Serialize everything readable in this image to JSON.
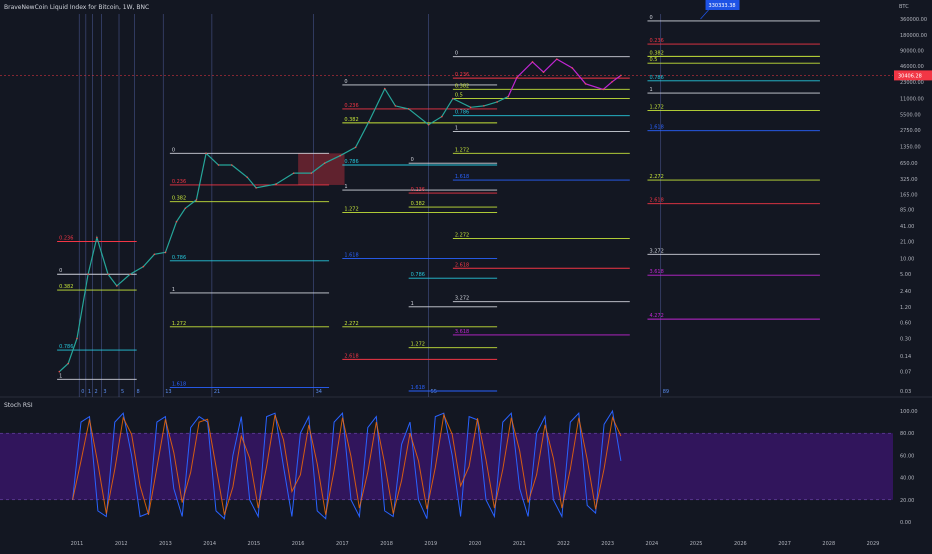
{
  "header": {
    "title": "BraveNewCoin Liquid Index for Bitcoin, 1W, BNC",
    "currency": "BTC",
    "rsi_title": "Stoch RSI"
  },
  "colors": {
    "background": "#131722",
    "price_line": "#26a69a",
    "price_line_recent": "#c026d3",
    "fib_0": "#d1d4dc",
    "fib_0236": "#f23645",
    "fib_0382": "#c6e43a",
    "fib_05": "#c6e43a",
    "fib_0786": "#26c6da",
    "fib_1": "#d1d4dc",
    "fib_1272": "#c6e43a",
    "fib_1618": "#2962ff",
    "fib_2272": "#c6e43a",
    "fib_2618": "#f23645",
    "fib_3272": "#d1d4dc",
    "fib_3618": "#c026d3",
    "fib_4272": "#c026d3",
    "rsi_band": "#4a148c",
    "rsi_k": "#2962ff",
    "rsi_d": "#ff6d00",
    "price_badge": "#f23645",
    "top_badge": "#1e53e5",
    "shaded_box": "#f23645"
  },
  "chart_data": [
    {
      "type": "line",
      "title": "BraveNewCoin Liquid Index for Bitcoin, 1W, BNC",
      "y_scale": "log",
      "y_ticks": [
        "360000.00",
        "180000.00",
        "90000.00",
        "46000.00",
        "23000.00",
        "11000.00",
        "5500.00",
        "2750.00",
        "1350.00",
        "650.00",
        "325.00",
        "165.00",
        "85.00",
        "41.00",
        "21.00",
        "10.00",
        "5.00",
        "2.40",
        "1.20",
        "0.60",
        "0.30",
        "0.14",
        "0.07",
        "0.03"
      ],
      "x_ticks": [
        "2011",
        "2012",
        "2013",
        "2014",
        "2015",
        "2016",
        "2017",
        "2018",
        "2019",
        "2020",
        "2021",
        "2022",
        "2023",
        "2024",
        "2025",
        "2026",
        "2027",
        "2028",
        "2029"
      ],
      "current_price": "30406.28",
      "top_target": "330333.38",
      "series": [
        {
          "x": [
            2010.6,
            2010.8,
            2011.0,
            2011.25,
            2011.45,
            2011.7,
            2011.9,
            2012.2,
            2012.5,
            2012.75,
            2013.0,
            2013.25,
            2013.45,
            2013.7,
            2013.92,
            2014.2,
            2014.5,
            2014.85,
            2015.05,
            2015.5,
            2015.9,
            2016.3,
            2016.6,
            2016.95,
            2017.3,
            2017.6,
            2017.96,
            2018.2,
            2018.5,
            2018.95,
            2019.25,
            2019.5,
            2019.9,
            2020.2,
            2020.5,
            2020.75,
            2020.95,
            2021.3,
            2021.55,
            2021.85,
            2022.2,
            2022.5,
            2022.9,
            2023.1,
            2023.3
          ],
          "y": [
            0.07,
            0.1,
            0.3,
            5,
            25,
            5,
            3,
            5,
            7,
            12,
            13,
            50,
            90,
            130,
            1000,
            600,
            600,
            350,
            220,
            260,
            420,
            420,
            650,
            900,
            1300,
            4000,
            17000,
            8000,
            7000,
            3500,
            5000,
            11000,
            7500,
            8000,
            9500,
            12000,
            28000,
            55000,
            35000,
            62000,
            42000,
            21000,
            16500,
            23000,
            30406
          ]
        }
      ],
      "rsi": {
        "y_ticks": [
          "100.00",
          "80.00",
          "60.00",
          "40.00",
          "20.00",
          "0.00"
        ],
        "band": [
          20,
          80
        ],
        "k": [
          20,
          90,
          95,
          10,
          5,
          90,
          98,
          60,
          5,
          8,
          90,
          95,
          30,
          5,
          85,
          95,
          90,
          10,
          3,
          60,
          95,
          20,
          5,
          95,
          98,
          50,
          5,
          80,
          95,
          10,
          3,
          90,
          98,
          20,
          5,
          85,
          95,
          10,
          5,
          70,
          90,
          20,
          3,
          95,
          98,
          60,
          5,
          95,
          92,
          20,
          5,
          90,
          98,
          30,
          5,
          80,
          95,
          20,
          5,
          90,
          98,
          15,
          8,
          88,
          100,
          55
        ]
      },
      "fib_sets": [
        {
          "labels": [
            "0",
            "0.236",
            "0.382",
            "0.786",
            "1"
          ],
          "levels": [
            5.0,
            21.0,
            2.5,
            0.18,
            0.05
          ],
          "x_range": [
            2010.55,
            2012.35
          ]
        },
        {
          "labels": [
            "0",
            "0.236",
            "0.382",
            "0.786",
            "1",
            "1.272",
            "1.618"
          ],
          "levels": [
            1000,
            250,
            120,
            9,
            2.2,
            0.5,
            0.035
          ],
          "x_range": [
            2013.1,
            2016.7
          ]
        },
        {
          "labels": [
            "0",
            "0.236",
            "0.382",
            "0.786",
            "1",
            "1.272",
            "1.618",
            "2.272",
            "2.618"
          ],
          "levels": [
            20000,
            7000,
            3800,
            600,
            200,
            75,
            10,
            0.5,
            0.12
          ],
          "x_range": [
            2017.0,
            2020.5
          ]
        },
        {
          "labels": [
            "0",
            "0.236",
            "0.382",
            "0.786",
            "1",
            "1.272",
            "1.618",
            "2.272",
            "2.618",
            "3.272",
            "3.618"
          ],
          "levels": [
            650,
            175,
            95,
            4.2,
            1.2,
            0.2,
            0.03,
            0.025,
            0.02,
            0.015,
            0.012
          ],
          "x_range": [
            2018.5,
            2020.5
          ]
        },
        {
          "labels": [
            "0",
            "0.236",
            "0.382",
            "0.5",
            "0.786",
            "1",
            "1.272",
            "1.618",
            "2.272",
            "2.618",
            "3.272",
            "3.618"
          ],
          "levels": [
            69000,
            27000,
            16500,
            11000,
            5200,
            2600,
            1000,
            310,
            24,
            6.5,
            1.5,
            0.35
          ],
          "x_range": [
            2019.5,
            2023.5
          ]
        },
        {
          "labels": [
            "0",
            "0.236",
            "0.382",
            "0.5",
            "0.786",
            "1",
            "1.272",
            "1.618",
            "2.272",
            "2.618",
            "3.272",
            "3.618",
            "4.272"
          ],
          "levels": [
            330000,
            120000,
            70000,
            52000,
            24000,
            14000,
            6500,
            2700,
            310,
            110,
            12,
            4.8,
            0.7
          ],
          "x_range": [
            2023.9,
            2027.8
          ]
        }
      ],
      "fib_level_labels_group1": [
        "0",
        "0.236",
        "0.382",
        "0.786",
        "1"
      ],
      "fib_level_labels_group2": [
        "0",
        "0.236",
        "0.382",
        "0.786",
        "1",
        "1.272",
        "1.618"
      ],
      "fib_level_labels_group3": [
        "0",
        "0.236",
        "0.382",
        "0.786",
        "1",
        "1.272",
        "1.618",
        "2.272",
        "2.618"
      ],
      "fib_level_labels_group4": [
        "0",
        "0.236",
        "0.382",
        "0.786",
        "1",
        "1.272",
        "1.618",
        "2.272",
        "2.618",
        "3.272",
        "3.618"
      ],
      "fib_level_labels_group5": [
        "0",
        "0.236",
        "0.382",
        "0.5",
        "0.786",
        "1",
        "1.272",
        "1.618",
        "2.272",
        "2.618",
        "3.272",
        "3.618"
      ],
      "fib_level_labels_group6": [
        "0",
        "0.236",
        "0.382",
        "0.5",
        "0.786",
        "1",
        "1.272",
        "1.618",
        "2.272",
        "2.618",
        "3.272",
        "3.618",
        "4.272"
      ],
      "fib_time_labels": [
        "0",
        "1",
        "2",
        "3",
        "5",
        "8",
        "13",
        "21",
        "34",
        "55",
        "89"
      ],
      "fib_time_x": [
        2011.05,
        2011.2,
        2011.35,
        2011.55,
        2011.95,
        2012.3,
        2012.95,
        2014.05,
        2016.35,
        2018.95,
        2024.2
      ]
    }
  ]
}
